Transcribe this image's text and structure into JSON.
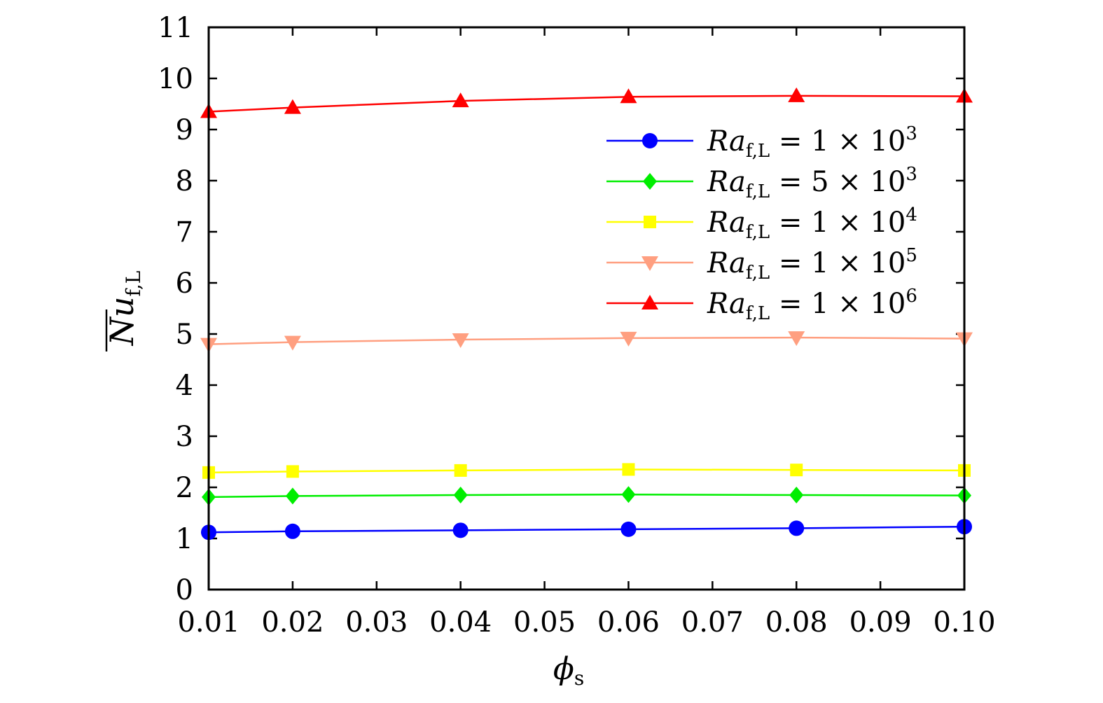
{
  "chart_data": {
    "type": "line",
    "title": "",
    "xlabel": {
      "symbol": "ϕ",
      "subscript": "s"
    },
    "ylabel": {
      "symbol": "Nu",
      "subscript": "f,L",
      "overline": true
    },
    "x": [
      0.01,
      0.02,
      0.04,
      0.06,
      0.08,
      0.1
    ],
    "xlim": [
      0.01,
      0.1
    ],
    "ylim": [
      0,
      11
    ],
    "xticks": [
      0.01,
      0.02,
      0.03,
      0.04,
      0.05,
      0.06,
      0.07,
      0.08,
      0.09,
      0.1
    ],
    "xtick_labels": [
      "0.01",
      "0.02",
      "0.03",
      "0.04",
      "0.05",
      "0.06",
      "0.07",
      "0.08",
      "0.09",
      "0.10"
    ],
    "yticks": [
      0,
      1,
      2,
      3,
      4,
      5,
      6,
      7,
      8,
      9,
      10,
      11
    ],
    "ytick_labels": [
      "0",
      "1",
      "2",
      "3",
      "4",
      "5",
      "6",
      "7",
      "8",
      "9",
      "10",
      "11"
    ],
    "grid": false,
    "legend_position": "right",
    "series": [
      {
        "name": "Ra_f,L = 1×10^3",
        "label": {
          "base": "Ra",
          "sub": "f,L",
          "mid": " = 1 × 10",
          "exp": "3"
        },
        "color": "#0000ff",
        "marker": "circle",
        "values": [
          1.12,
          1.14,
          1.16,
          1.18,
          1.2,
          1.23
        ]
      },
      {
        "name": "Ra_f,L = 5×10^3",
        "label": {
          "base": "Ra",
          "sub": "f,L",
          "mid": " = 5 × 10",
          "exp": "3"
        },
        "color": "#00ee00",
        "marker": "diamond",
        "values": [
          1.81,
          1.83,
          1.85,
          1.86,
          1.85,
          1.84
        ]
      },
      {
        "name": "Ra_f,L = 1×10^4",
        "label": {
          "base": "Ra",
          "sub": "f,L",
          "mid": " = 1 × 10",
          "exp": "4"
        },
        "color": "#ffff00",
        "marker": "square",
        "values": [
          2.29,
          2.31,
          2.33,
          2.35,
          2.34,
          2.33
        ]
      },
      {
        "name": "Ra_f,L = 1×10^5",
        "label": {
          "base": "Ra",
          "sub": "f,L",
          "mid": " = 1 × 10",
          "exp": "5"
        },
        "color": "#ff9f80",
        "marker": "triangle-down",
        "values": [
          4.8,
          4.84,
          4.89,
          4.92,
          4.93,
          4.91
        ]
      },
      {
        "name": "Ra_f,L = 1×10^6",
        "label": {
          "base": "Ra",
          "sub": "f,L",
          "mid": " = 1 × 10",
          "exp": "6"
        },
        "color": "#ff0000",
        "marker": "triangle-up",
        "values": [
          9.35,
          9.43,
          9.56,
          9.64,
          9.66,
          9.65
        ]
      }
    ]
  }
}
